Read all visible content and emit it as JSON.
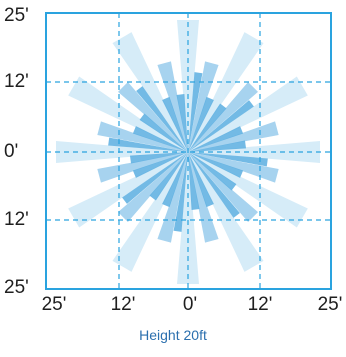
{
  "diagram": {
    "caption": "Height 20ft",
    "y_ticks": [
      "25'",
      "12'",
      "0'",
      "12'",
      "25'"
    ],
    "x_ticks": [
      "25'",
      "12'",
      "0'",
      "12'",
      "25'"
    ],
    "colors": {
      "frame": "#2aa3df",
      "grid": "#2aa3df",
      "ray_light": "#d6ecf8",
      "ray_mid": "#a7d3ef",
      "ray_dark": "#5aaee0",
      "caption": "#2b6fae"
    }
  }
}
